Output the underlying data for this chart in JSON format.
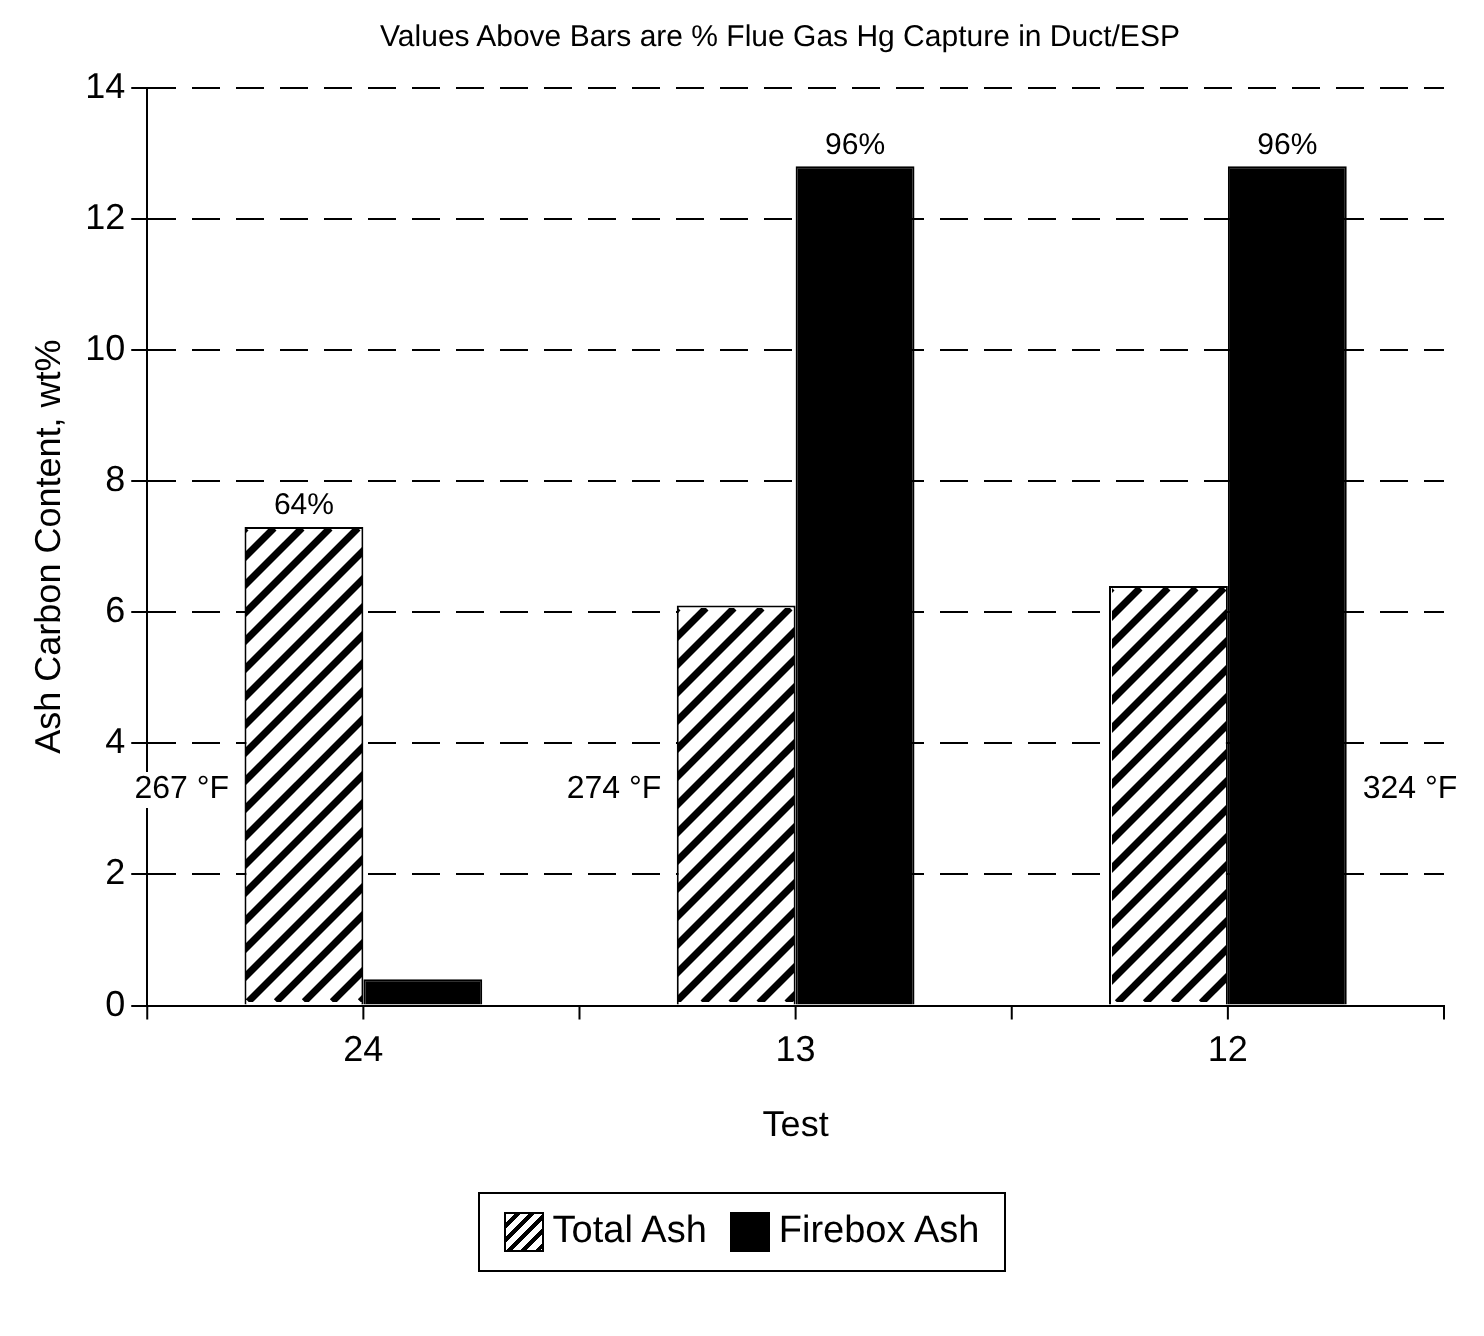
{
  "chart_data": {
    "type": "bar",
    "title": "Values Above Bars are % Flue Gas Hg Capture in Duct/ESP",
    "xlabel": "Test",
    "ylabel": "Ash Carbon Content, wt%",
    "categories": [
      "24",
      "13",
      "12"
    ],
    "series": [
      {
        "name": "Total Ash",
        "color": "#ffffff",
        "values": [
          7.3,
          6.1,
          6.4
        ]
      },
      {
        "name": "Firebox Ash",
        "color": "#000000",
        "values": [
          0.4,
          12.8,
          12.8
        ]
      }
    ],
    "annotations": [
      {
        "text": "64%",
        "x": "24",
        "y": 7.3
      },
      {
        "text": "96%",
        "x": "13",
        "y": 12.8
      },
      {
        "text": "96%",
        "x": "12",
        "y": 12.8
      },
      "267 °F",
      "274 °F",
      "324 °F"
    ],
    "ylim": [
      0,
      14
    ],
    "yticks": [
      0,
      2,
      4,
      6,
      8,
      10,
      12,
      14
    ],
    "grid": "y",
    "legend": "bottom"
  }
}
